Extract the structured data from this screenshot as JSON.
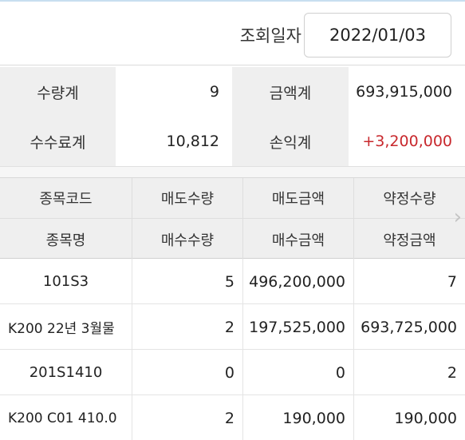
{
  "date_filter": {
    "label": "조회일자",
    "value": "2022/01/03"
  },
  "summary": {
    "qty_total": {
      "label": "수량계",
      "value": "9"
    },
    "amount_total": {
      "label": "금액계",
      "value": "693,915,000"
    },
    "fee_total": {
      "label": "수수료계",
      "value": "10,812"
    },
    "pnl_total": {
      "label": "손익계",
      "value": "+3,200,000",
      "color": "#c8282d"
    }
  },
  "table": {
    "header_row1": [
      "종목코드",
      "매도수량",
      "매도금액",
      "약정수량"
    ],
    "header_row2": [
      "종목명",
      "매수수량",
      "매수금액",
      "약정금액"
    ],
    "scroll_hint_icon": "chevron-right-icon",
    "rows": [
      {
        "name": "101S3",
        "qty": "5",
        "amount": "496,200,000",
        "contract": "7"
      },
      {
        "name": "K200 22년  3월물",
        "qty": "2",
        "amount": "197,525,000",
        "contract": "693,725,000"
      },
      {
        "name": "201S1410",
        "qty": "0",
        "amount": "0",
        "contract": "2"
      },
      {
        "name": "K200 C01 410.0",
        "qty": "2",
        "amount": "190,000",
        "contract": "190,000"
      }
    ]
  }
}
